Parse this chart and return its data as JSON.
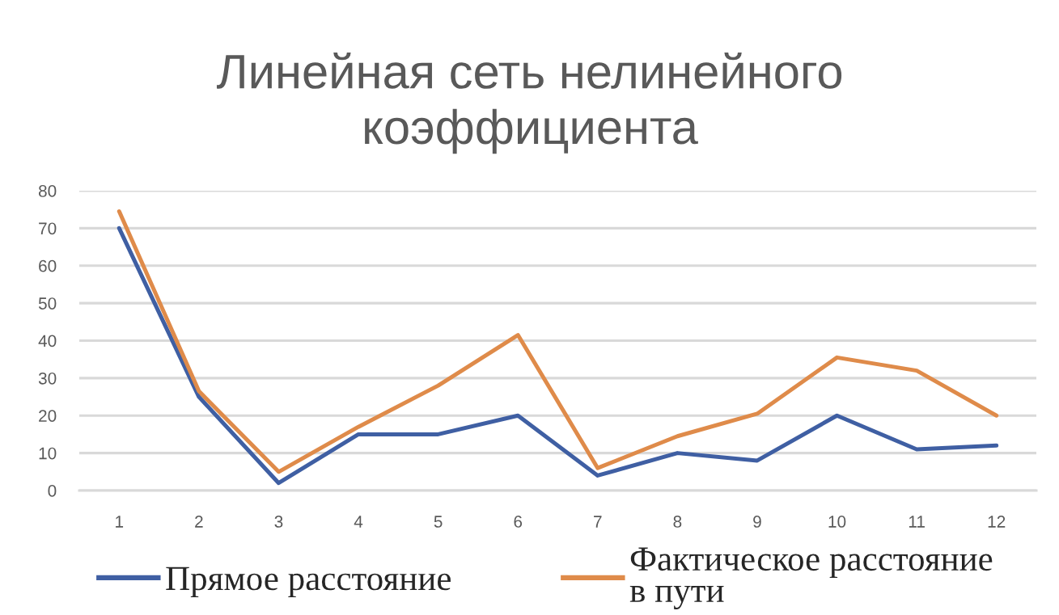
{
  "chart_data": {
    "type": "line",
    "title": "Линейная сеть нелинейного коэффициента",
    "categories": [
      "1",
      "2",
      "3",
      "4",
      "5",
      "6",
      "7",
      "8",
      "9",
      "10",
      "11",
      "12"
    ],
    "series": [
      {
        "name": "Прямое расстояние",
        "color": "#3f5fa3",
        "values": [
          70,
          25,
          2,
          15,
          15,
          20,
          4,
          10,
          8,
          20,
          11,
          12
        ]
      },
      {
        "name": "Фактическое расстояние в пути",
        "color": "#df8b4a",
        "values": [
          74.5,
          26.5,
          5,
          17,
          28,
          41.5,
          6,
          14.5,
          20.5,
          35.5,
          32,
          20
        ]
      }
    ],
    "ylim": [
      0,
      80
    ],
    "yticks": [
      0,
      10,
      20,
      30,
      40,
      50,
      60,
      70,
      80
    ],
    "grid": "y",
    "legend": "bottom"
  }
}
